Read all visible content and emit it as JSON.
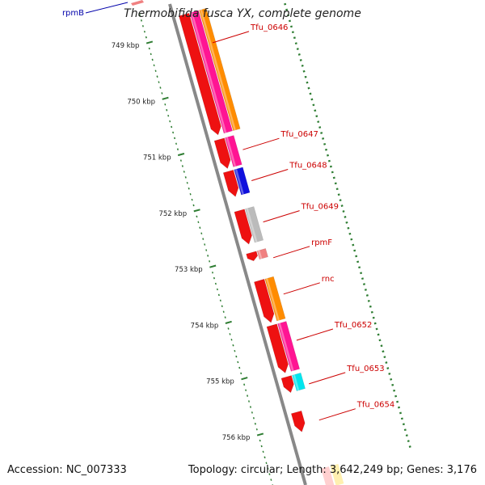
{
  "title": "Thermobifida fusca YX, complete genome",
  "footer": {
    "accession": "Accession: NC_007333",
    "summary": "Topology: circular; Length: 3,642,249 bp; Genes: 3,176"
  },
  "colors": {
    "backbone": "#888888",
    "tick": "#2e7d32",
    "gene_label": "#cc0000",
    "offscreen_label": "#0000aa",
    "forward_strand": "#ee1111"
  },
  "kbp_ticks": [
    {
      "label": "749 kbp",
      "kbp": 749
    },
    {
      "label": "750 kbp",
      "kbp": 750
    },
    {
      "label": "751 kbp",
      "kbp": 751
    },
    {
      "label": "752 kbp",
      "kbp": 752
    },
    {
      "label": "753 kbp",
      "kbp": 753
    },
    {
      "label": "754 kbp",
      "kbp": 754
    },
    {
      "label": "755 kbp",
      "kbp": 755
    },
    {
      "label": "756 kbp",
      "kbp": 756
    }
  ],
  "offscreen_gene": {
    "name": "rpmB"
  },
  "genes": [
    {
      "name": "Tfu_0646",
      "start_kbp": 748.7,
      "end_kbp": 750.85,
      "category_color": "#ff1493",
      "second_color": "#ff8c00"
    },
    {
      "name": "Tfu_0647",
      "start_kbp": 750.93,
      "end_kbp": 751.45,
      "category_color": "#ff1493"
    },
    {
      "name": "Tfu_0648",
      "start_kbp": 751.5,
      "end_kbp": 751.95,
      "category_color": "#1010dd"
    },
    {
      "name": "Tfu_0649",
      "start_kbp": 752.2,
      "end_kbp": 752.8,
      "category_color": "#bbbbbb"
    },
    {
      "name": "rpmF",
      "start_kbp": 752.95,
      "end_kbp": 753.1,
      "category_color": "#f08080"
    },
    {
      "name": "rnc",
      "start_kbp": 753.45,
      "end_kbp": 754.2,
      "category_color": "#ff8c00"
    },
    {
      "name": "Tfu_0652",
      "start_kbp": 754.25,
      "end_kbp": 755.1,
      "category_color": "#ff1493"
    },
    {
      "name": "Tfu_0653",
      "start_kbp": 755.17,
      "end_kbp": 755.45,
      "category_color": "#00e5ee"
    },
    {
      "name": "Tfu_0654",
      "start_kbp": 755.8,
      "end_kbp": 756.15,
      "category_color": null
    }
  ]
}
